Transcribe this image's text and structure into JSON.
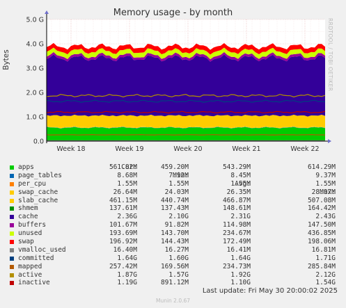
{
  "chart_data": {
    "type": "area",
    "title": "Memory usage - by month",
    "ylabel": "Bytes",
    "side_label": "RRDTOOL / TOBI OETIKER",
    "ylim": [
      0,
      5
    ],
    "y_ticks": [
      "0.0",
      "1.0 G",
      "2.0 G",
      "3.0 G",
      "4.0 G",
      "5.0 G"
    ],
    "x_ticks": [
      "Week 18",
      "Week 19",
      "Week 20",
      "Week 21",
      "Week 22"
    ],
    "grid": true,
    "stack_order": [
      "apps",
      "page_tables",
      "per_cpu",
      "swap_cache",
      "slab_cache",
      "cache",
      "buffers",
      "unused",
      "swap"
    ],
    "line_series": [
      "vmalloc_used",
      "committed",
      "mapped",
      "active",
      "inactive"
    ],
    "legend_headers": [
      "Cur:",
      "Min:",
      "Avg:",
      "Max:"
    ],
    "series": [
      {
        "name": "apps",
        "color": "#00cc00",
        "cur": "561.82M",
        "min": "459.20M",
        "avg": "543.29M",
        "max": "614.29M",
        "value_gb": 0.55
      },
      {
        "name": "page_tables",
        "color": "#0066b3",
        "cur": "8.68M",
        "min": "7.92M",
        "avg": "8.45M",
        "max": "9.37M",
        "value_gb": 0.01
      },
      {
        "name": "per_cpu",
        "color": "#ff8000",
        "cur": "1.55M",
        "min": "1.55M",
        "avg": "1.55M",
        "max": "1.55M",
        "value_gb": 0.0
      },
      {
        "name": "swap_cache",
        "color": "#ffcc00",
        "cur": "26.64M",
        "min": "24.03M",
        "avg": "26.35M",
        "max": "28.97M",
        "value_gb": 0.03
      },
      {
        "name": "slab_cache",
        "color": "#ffcc00",
        "cur": "461.15M",
        "min": "440.74M",
        "avg": "466.87M",
        "max": "507.08M",
        "value_gb": 0.46
      },
      {
        "name": "shmem",
        "color": "#008f00",
        "cur": "137.61M",
        "min": "137.43M",
        "avg": "148.61M",
        "max": "164.42M",
        "value_gb": 0.14
      },
      {
        "name": "cache",
        "color": "#330099",
        "cur": "2.36G",
        "min": "2.10G",
        "avg": "2.31G",
        "max": "2.43G",
        "value_gb": 2.36
      },
      {
        "name": "buffers",
        "color": "#990099",
        "cur": "101.67M",
        "min": "91.82M",
        "avg": "114.98M",
        "max": "147.50M",
        "value_gb": 0.1
      },
      {
        "name": "unused",
        "color": "#ccff00",
        "cur": "193.69M",
        "min": "143.70M",
        "avg": "234.67M",
        "max": "436.85M",
        "value_gb": 0.19
      },
      {
        "name": "swap",
        "color": "#ff0000",
        "cur": "196.92M",
        "min": "144.43M",
        "avg": "172.49M",
        "max": "198.06M",
        "value_gb": 0.19
      },
      {
        "name": "vmalloc_used",
        "color": "#808080",
        "cur": "16.40M",
        "min": "16.27M",
        "avg": "16.41M",
        "max": "16.81M",
        "value_gb": 0.016
      },
      {
        "name": "committed",
        "color": "#004080",
        "cur": "1.64G",
        "min": "1.60G",
        "avg": "1.64G",
        "max": "1.71G",
        "value_gb": 1.64
      },
      {
        "name": "mapped",
        "color": "#b35a00",
        "cur": "257.42M",
        "min": "169.56M",
        "avg": "234.73M",
        "max": "285.84M",
        "value_gb": 0.26
      },
      {
        "name": "active",
        "color": "#b38f00",
        "cur": "1.87G",
        "min": "1.57G",
        "avg": "1.92G",
        "max": "2.12G",
        "value_gb": 1.87
      },
      {
        "name": "inactive",
        "color": "#c00000",
        "cur": "1.19G",
        "min": "891.12M",
        "avg": "1.10G",
        "max": "1.54G",
        "value_gb": 1.19
      }
    ]
  },
  "footer": {
    "last_update": "Last update: Fri May 30 20:00:02 2025",
    "munin": "Munin 2.0.67"
  }
}
